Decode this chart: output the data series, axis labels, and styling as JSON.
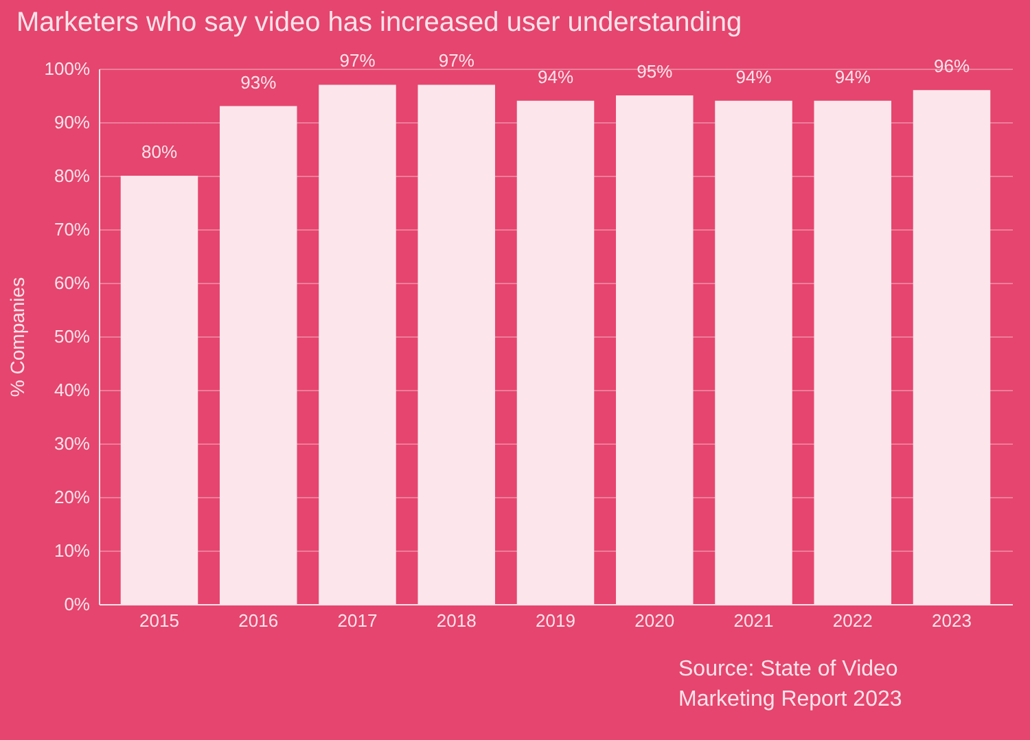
{
  "chart_data": {
    "type": "bar",
    "title": "Marketers who say video has increased user understanding",
    "ylabel": "% Companies",
    "categories": [
      "2015",
      "2016",
      "2017",
      "2018",
      "2019",
      "2020",
      "2021",
      "2022",
      "2023"
    ],
    "values": [
      80,
      93,
      97,
      97,
      94,
      95,
      94,
      94,
      96
    ],
    "color": "#fce6ec",
    "value_labels": [
      "80%",
      "93%",
      "97%",
      "97%",
      "94%",
      "95%",
      "94%",
      "94%",
      "96%"
    ],
    "ylim": [
      0,
      100
    ],
    "yticks": [
      {
        "value": 0,
        "label": "0%"
      },
      {
        "value": 10,
        "label": "10%"
      },
      {
        "value": 20,
        "label": "20%"
      },
      {
        "value": 30,
        "label": "30%"
      },
      {
        "value": 40,
        "label": "40%"
      },
      {
        "value": 50,
        "label": "50%"
      },
      {
        "value": 60,
        "label": "60%"
      },
      {
        "value": 70,
        "label": "70%"
      },
      {
        "value": 80,
        "label": "80%"
      },
      {
        "value": 90,
        "label": "90%"
      },
      {
        "value": 100,
        "label": "100%"
      }
    ],
    "grid": "y",
    "annotations": [
      "Source: State of Video Marketing Report 2023"
    ]
  }
}
